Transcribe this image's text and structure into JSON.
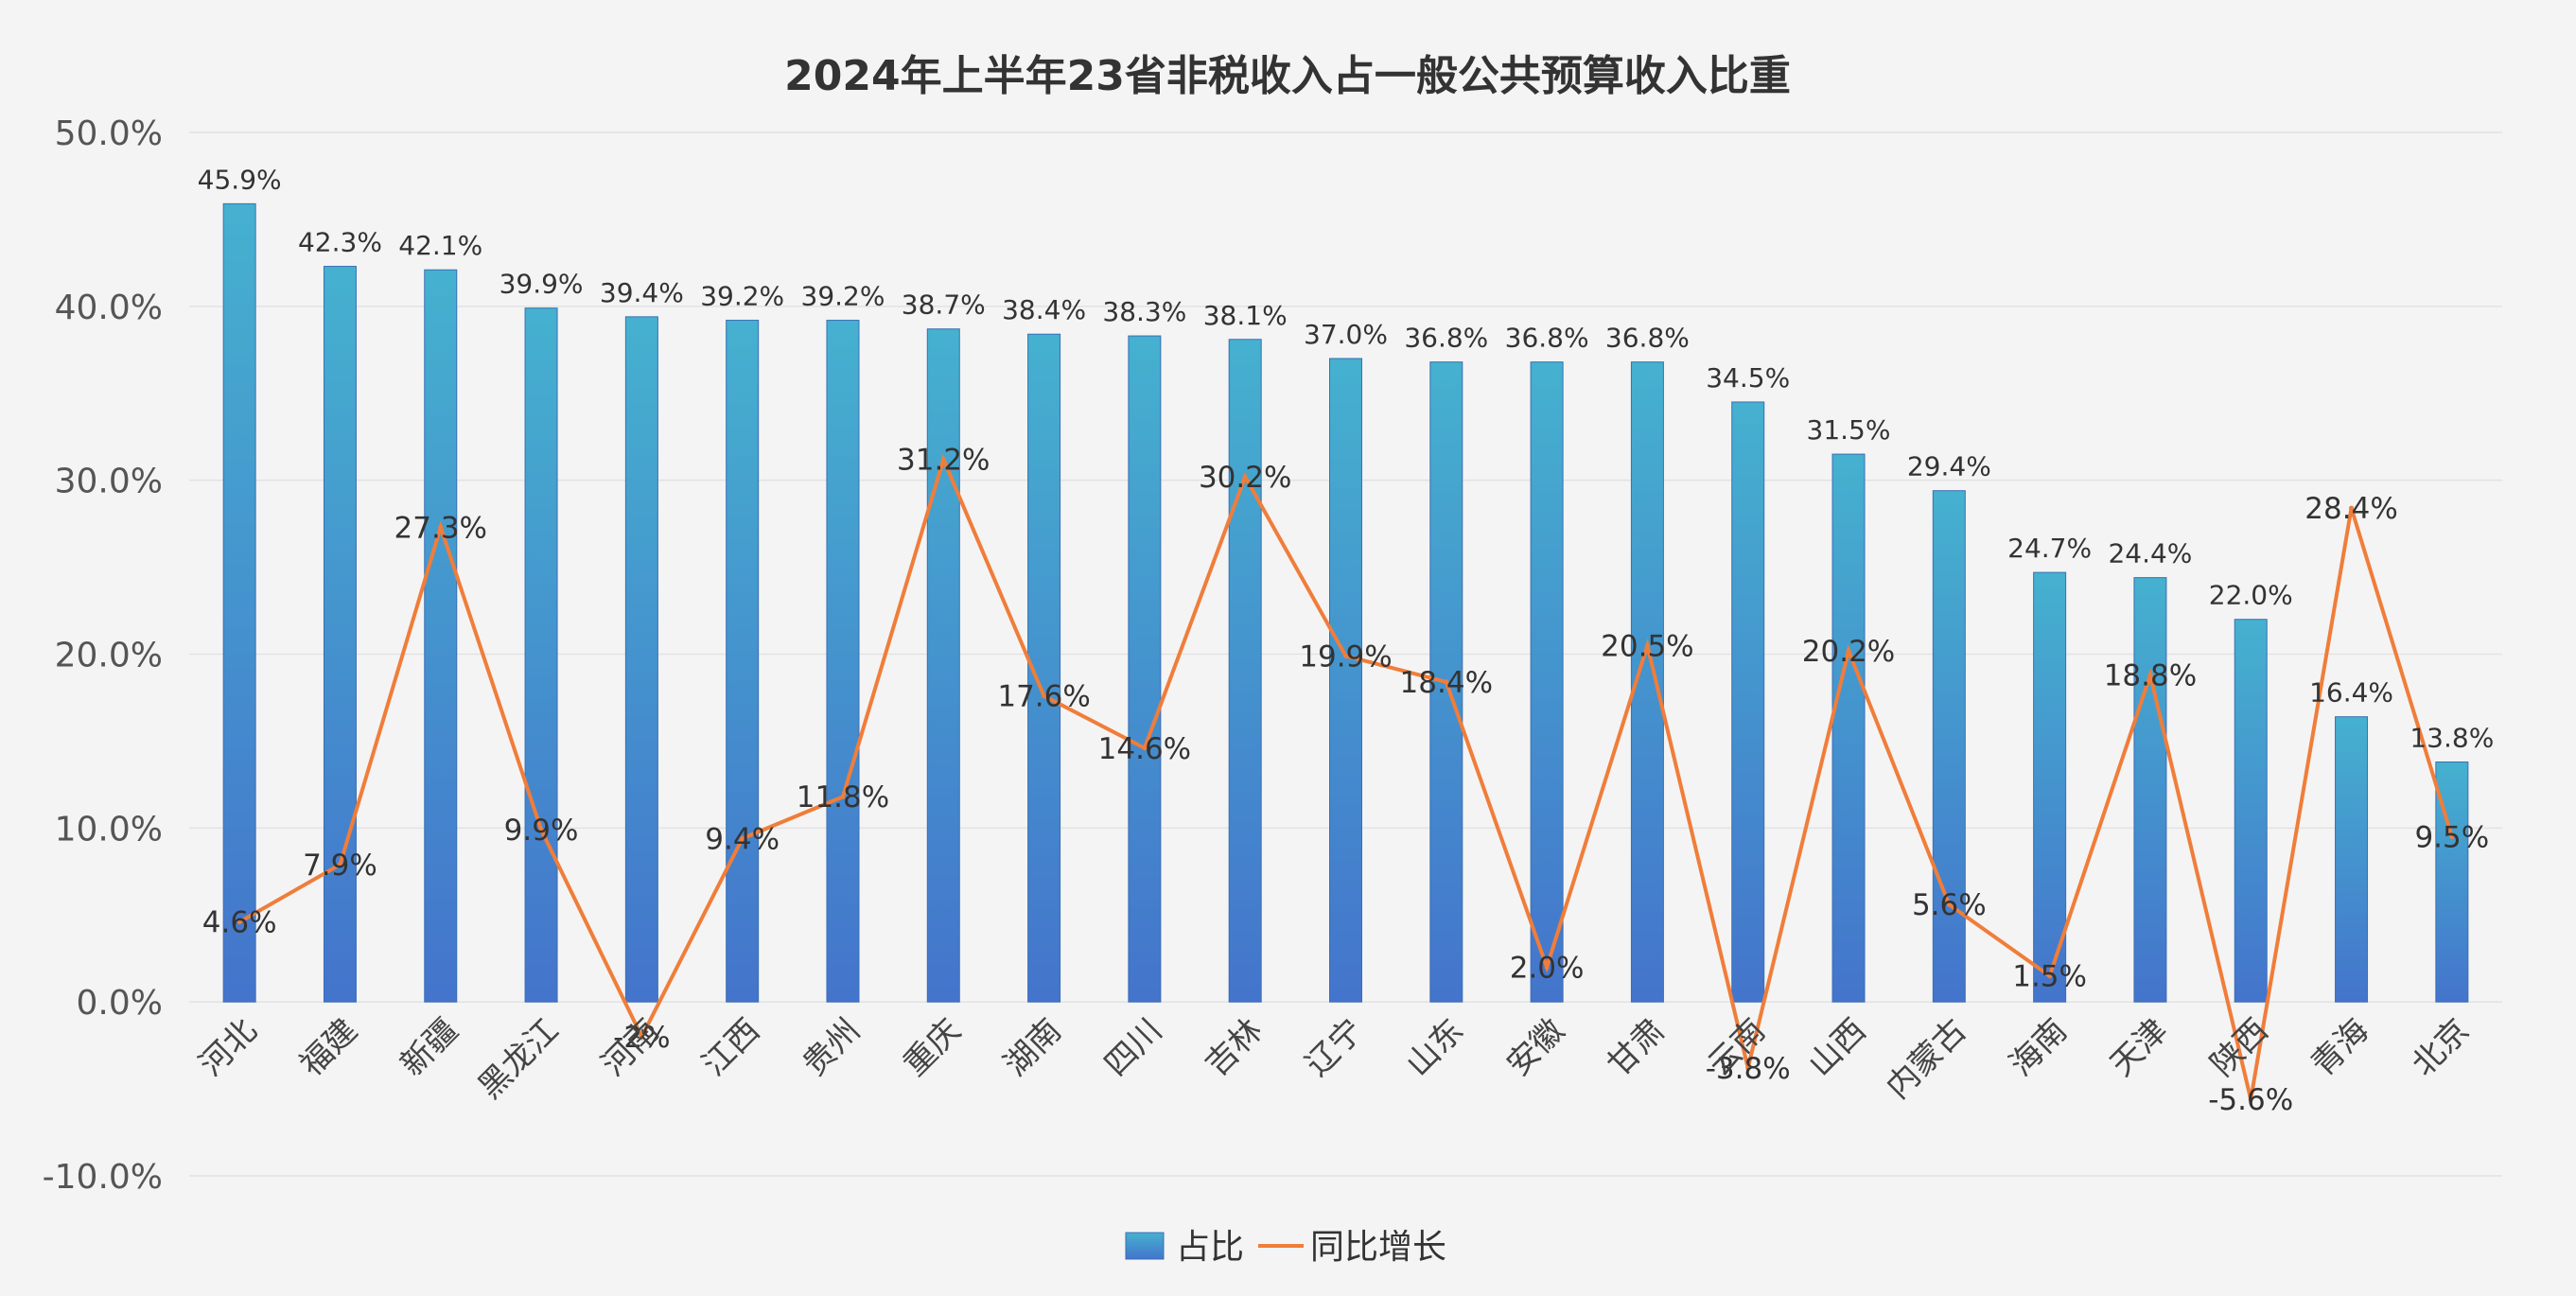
{
  "chart_data": {
    "type": "bar",
    "title": "2024年上半年23省非税收入占一般公共预算收入比重",
    "categories": [
      "河北",
      "福建",
      "新疆",
      "黑龙江",
      "河南",
      "江西",
      "贵州",
      "重庆",
      "湖南",
      "四川",
      "吉林",
      "辽宁",
      "山东",
      "安徽",
      "甘肃",
      "云南",
      "山西",
      "内蒙古",
      "海南",
      "天津",
      "陕西",
      "青海",
      "北京"
    ],
    "series": [
      {
        "name": "占比",
        "type": "bar",
        "color": "#42a8cf",
        "values": [
          45.9,
          42.3,
          42.1,
          39.9,
          39.4,
          39.2,
          39.2,
          38.7,
          38.4,
          38.3,
          38.1,
          37.0,
          36.8,
          36.8,
          36.8,
          34.5,
          31.5,
          29.4,
          24.7,
          24.4,
          22.0,
          16.4,
          13.8
        ],
        "labels": [
          "45.9%",
          "42.3%",
          "42.1%",
          "39.9%",
          "39.4%",
          "39.2%",
          "39.2%",
          "38.7%",
          "38.4%",
          "38.3%",
          "38.1%",
          "37.0%",
          "36.8%",
          "36.8%",
          "36.8%",
          "34.5%",
          "31.5%",
          "29.4%",
          "24.7%",
          "24.4%",
          "22.0%",
          "16.4%",
          "13.8%"
        ]
      },
      {
        "name": "同比增长",
        "type": "line",
        "color": "#f07d3a",
        "values": [
          4.6,
          7.9,
          27.3,
          9.9,
          -2,
          9.4,
          11.8,
          31.2,
          17.6,
          14.6,
          30.2,
          19.9,
          18.4,
          2.0,
          20.5,
          -3.8,
          20.2,
          5.6,
          1.5,
          18.8,
          -5.6,
          28.4,
          9.5
        ],
        "labels": [
          "4.6%",
          "7.9%",
          "27.3%",
          "9.9%",
          "-2%",
          "9.4%",
          "11.8%",
          "31.2%",
          "17.6%",
          "14.6%",
          "30.2%",
          "19.9%",
          "18.4%",
          "2.0%",
          "20.5%",
          "-3.8%",
          "20.2%",
          "5.6%",
          "1.5%",
          "18.8%",
          "-5.6%",
          "28.4%",
          "9.5%"
        ]
      }
    ],
    "yticks": [
      "50.0%",
      "40.0%",
      "30.0%",
      "20.0%",
      "10.0%",
      "0.0%",
      "-10.0%"
    ],
    "ylim": [
      -10,
      50
    ],
    "grid": true,
    "legend": "bottom-center"
  }
}
